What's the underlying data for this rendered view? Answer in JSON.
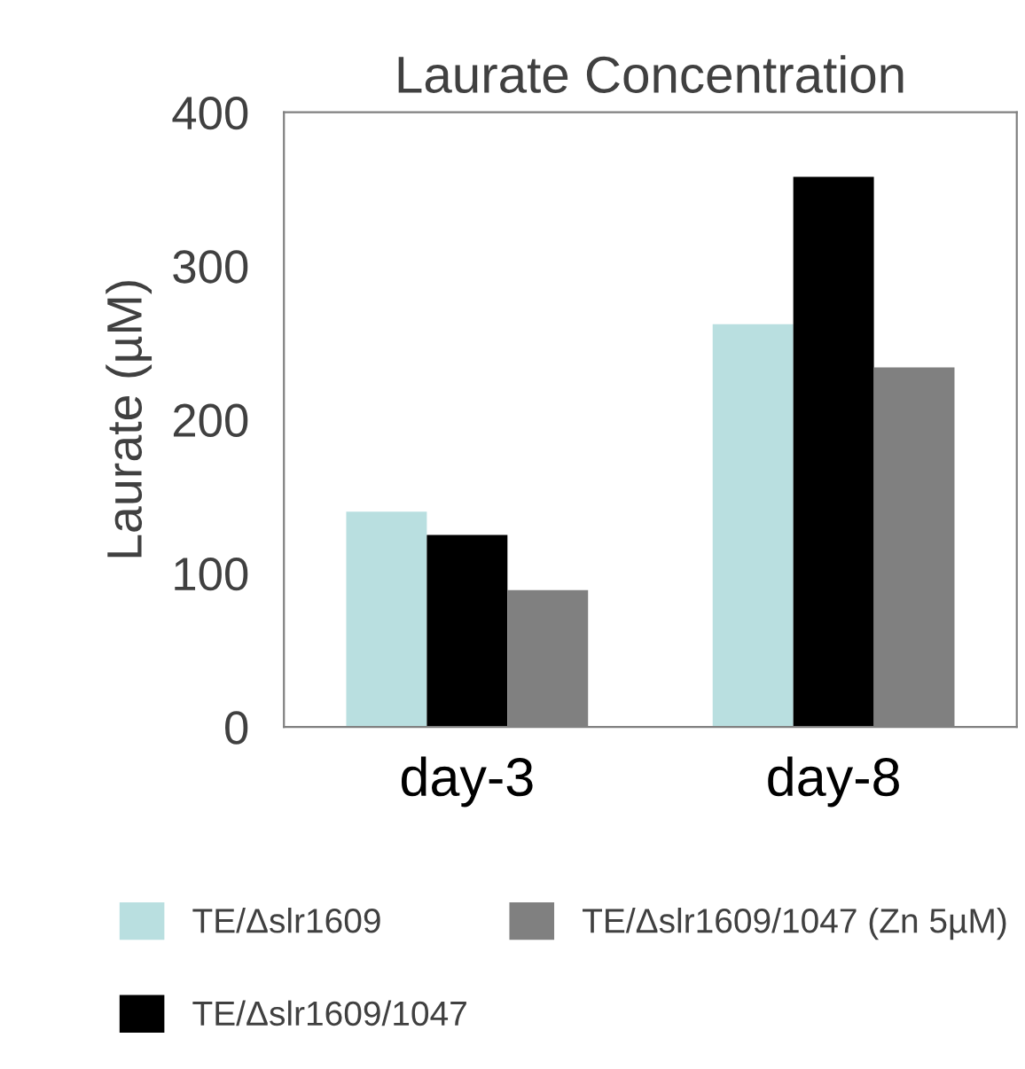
{
  "chart_data": {
    "type": "bar",
    "title": "Laurate Concentration",
    "ylabel": "Laurate (µM)",
    "categories": [
      "day-3",
      "day-8"
    ],
    "series": [
      {
        "name": "TE/Δslr1609",
        "color": "#b9dfe0",
        "values": [
          140,
          262
        ]
      },
      {
        "name": "TE/Δslr1609/1047",
        "color": "#000000",
        "values": [
          125,
          358
        ]
      },
      {
        "name": "TE/Δslr1609/1047 (Zn 5µM)",
        "color": "#808080",
        "values": [
          89,
          234
        ]
      }
    ],
    "ylim": [
      0,
      400
    ],
    "yticks": [
      0,
      100,
      200,
      300,
      400
    ],
    "grid": false,
    "legend": "bottom"
  }
}
